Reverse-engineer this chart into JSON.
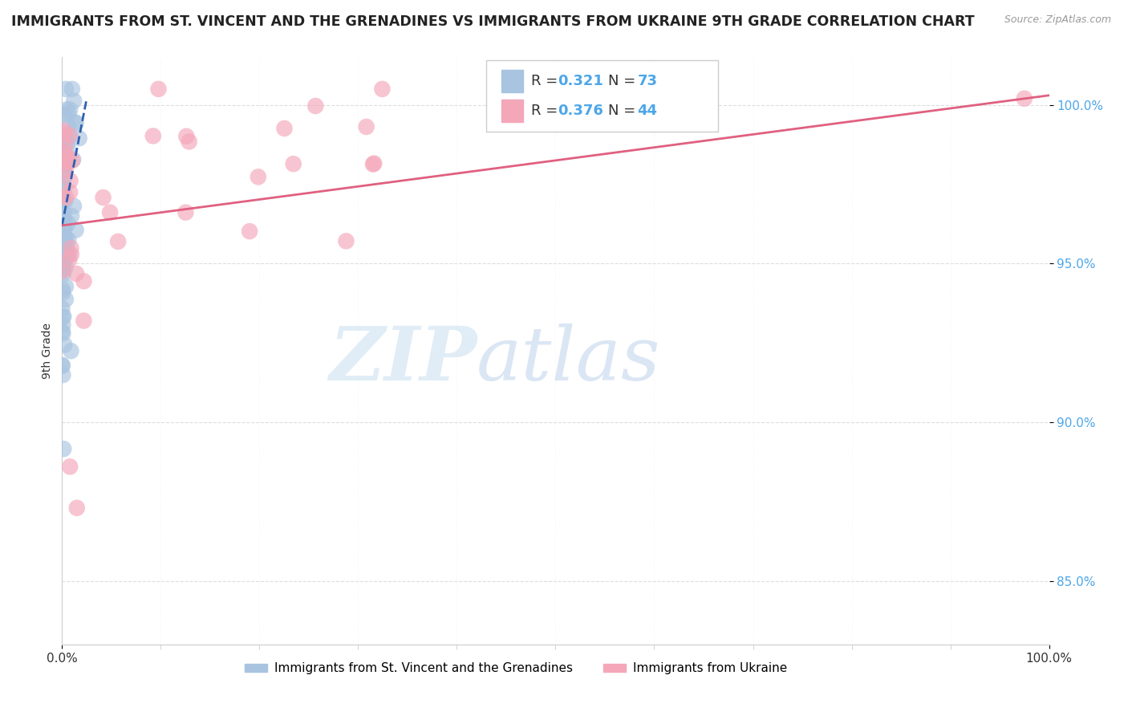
{
  "title": "IMMIGRANTS FROM ST. VINCENT AND THE GRENADINES VS IMMIGRANTS FROM UKRAINE 9TH GRADE CORRELATION CHART",
  "source_text": "Source: ZipAtlas.com",
  "ylabel": "9th Grade",
  "xlim": [
    0.0,
    1.0
  ],
  "ylim": [
    0.83,
    1.015
  ],
  "x_tick_labels": [
    "0.0%",
    "100.0%"
  ],
  "y_tick_labels": [
    "85.0%",
    "90.0%",
    "95.0%",
    "100.0%"
  ],
  "y_tick_positions": [
    0.85,
    0.9,
    0.95,
    1.0
  ],
  "r_blue_val": "0.321",
  "r_blue_n": "73",
  "r_pink_val": "0.376",
  "r_pink_n": "44",
  "blue_color": "#a8c4e0",
  "blue_line_color": "#3060b0",
  "pink_color": "#f4a7b9",
  "pink_line_color": "#e06080",
  "r_val_color": "#4da6e8",
  "grid_color": "#dddddd",
  "background_color": "#ffffff",
  "watermark_zip": "ZIP",
  "watermark_atlas": "atlas",
  "title_fontsize": 12.5,
  "source_fontsize": 9,
  "axis_label_fontsize": 10,
  "tick_fontsize": 11,
  "legend_fontsize": 11
}
